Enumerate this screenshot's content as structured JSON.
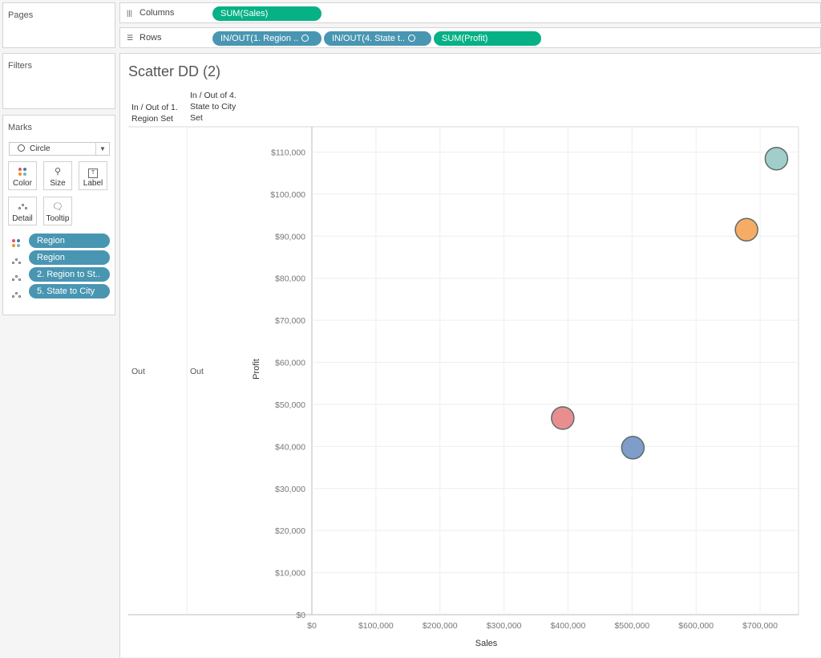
{
  "left_panel": {
    "pages_title": "Pages",
    "filters_title": "Filters",
    "marks_title": "Marks",
    "mark_type": "Circle",
    "mark_buttons": [
      "Color",
      "Size",
      "Label",
      "Detail",
      "Tooltip"
    ],
    "mark_fields": [
      {
        "label": "Region",
        "icon": "color-icon"
      },
      {
        "label": "Region",
        "icon": "detail-icon"
      },
      {
        "label": "2. Region to St..",
        "icon": "detail-icon"
      },
      {
        "label": "5. State to City",
        "icon": "detail-icon"
      }
    ]
  },
  "shelves": {
    "columns_label": "Columns",
    "rows_label": "Rows",
    "columns_pills": [
      "SUM(Sales)"
    ],
    "rows_pills": [
      "IN/OUT(1. Region ..",
      "IN/OUT(4. State t..",
      "SUM(Profit)"
    ]
  },
  "view": {
    "sheet_title": "Scatter DD (2)",
    "row_header_1": "In / Out of 1. Region Set",
    "row_header_2": "In / Out of 4. State to City Set",
    "row_value_1": "Out",
    "row_value_2": "Out"
  },
  "chart_data": {
    "type": "scatter",
    "xlabel": "Sales",
    "ylabel": "Profit",
    "xlim": [
      0,
      760000
    ],
    "ylim": [
      0,
      116000
    ],
    "x_ticks": [
      0,
      100000,
      200000,
      300000,
      400000,
      500000,
      600000,
      700000
    ],
    "x_tick_labels": [
      "$0",
      "$100,000",
      "$200,000",
      "$300,000",
      "$400,000",
      "$500,000",
      "$600,000",
      "$700,000"
    ],
    "y_ticks": [
      0,
      10000,
      20000,
      30000,
      40000,
      50000,
      60000,
      70000,
      80000,
      90000,
      100000,
      110000
    ],
    "y_tick_labels": [
      "$0",
      "$10,000",
      "$20,000",
      "$30,000",
      "$40,000",
      "$50,000",
      "$60,000",
      "$70,000",
      "$80,000",
      "$90,000",
      "$100,000",
      "$110,000"
    ],
    "grid": true,
    "points": [
      {
        "x": 391722,
        "y": 46749,
        "color": "#e8888a"
      },
      {
        "x": 501240,
        "y": 39706,
        "color": "#7898c6"
      },
      {
        "x": 678781,
        "y": 91523,
        "color": "#f5a85c"
      },
      {
        "x": 725458,
        "y": 108418,
        "color": "#9ccbc8"
      }
    ]
  }
}
